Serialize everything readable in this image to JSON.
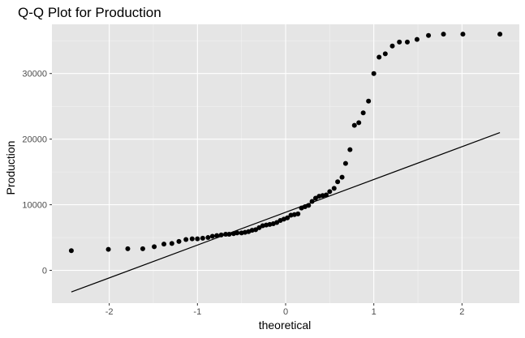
{
  "chart_data": {
    "type": "scatter",
    "title": "Q-Q Plot for Production",
    "xlabel": "theoretical",
    "ylabel": "Production",
    "xlim": [
      -2.65,
      2.65
    ],
    "ylim": [
      -5000,
      37500
    ],
    "x_ticks": [
      -2,
      -1,
      0,
      1,
      2
    ],
    "x_tick_labels": [
      "-2",
      "-1",
      "0",
      "1",
      "2"
    ],
    "y_ticks": [
      0,
      10000,
      20000,
      30000
    ],
    "y_tick_labels": [
      "0",
      "10000",
      "20000",
      "30000"
    ],
    "grid": true,
    "legend": "none",
    "colors": {
      "panel": "#e5e5e5",
      "grid_major": "#ffffff",
      "points": "#000000",
      "line": "#000000",
      "tick_text": "#4d4d4d"
    },
    "reference_line": {
      "x": [
        -2.43,
        2.43
      ],
      "y": [
        -3300,
        21000
      ]
    },
    "points": {
      "x": [
        -2.43,
        -2.01,
        -1.79,
        -1.62,
        -1.49,
        -1.38,
        -1.29,
        -1.21,
        -1.13,
        -1.06,
        -1.0,
        -0.94,
        -0.88,
        -0.83,
        -0.78,
        -0.73,
        -0.68,
        -0.64,
        -0.59,
        -0.55,
        -0.5,
        -0.46,
        -0.42,
        -0.38,
        -0.34,
        -0.3,
        -0.26,
        -0.22,
        -0.18,
        -0.14,
        -0.1,
        -0.06,
        -0.02,
        0.02,
        0.06,
        0.1,
        0.14,
        0.18,
        0.22,
        0.26,
        0.3,
        0.34,
        0.38,
        0.42,
        0.46,
        0.5,
        0.55,
        0.59,
        0.64,
        0.68,
        0.73,
        0.78,
        0.83,
        0.88,
        0.94,
        1.0,
        1.06,
        1.13,
        1.21,
        1.29,
        1.38,
        1.49,
        1.62,
        1.79,
        2.01,
        2.43
      ],
      "y": [
        3000,
        3200,
        3300,
        3300,
        3600,
        4000,
        4100,
        4400,
        4700,
        4800,
        4800,
        4900,
        5000,
        5200,
        5300,
        5400,
        5500,
        5500,
        5600,
        5700,
        5700,
        5800,
        5900,
        6100,
        6200,
        6500,
        6800,
        6900,
        7000,
        7100,
        7300,
        7600,
        7800,
        8000,
        8400,
        8500,
        8600,
        9500,
        9700,
        9900,
        10500,
        11000,
        11300,
        11400,
        11500,
        12000,
        12500,
        13500,
        14200,
        16300,
        18400,
        22100,
        22500,
        24000,
        25800,
        30000,
        32500,
        33000,
        34200,
        34800,
        34800,
        35200,
        35800,
        36000,
        36000,
        36000
      ]
    }
  }
}
